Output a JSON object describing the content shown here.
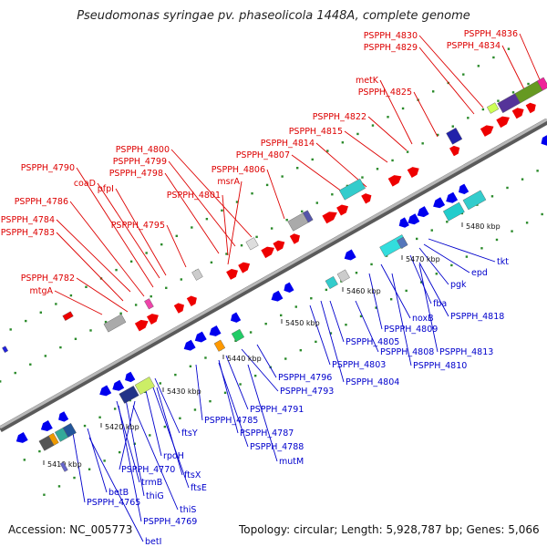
{
  "title": "Pseudomonas syringae pv. phaseolicola 1448A, complete genome",
  "footer": {
    "accession": "Accession: NC_005773",
    "summary": "Topology: circular; Length: 5,928,787 bp; Genes: 5,066"
  },
  "colors": {
    "forward_label": "#dd0000",
    "reverse_label": "#0000cc",
    "backbone": "#8a8a8a",
    "forward_gene": "#ee0000",
    "reverse_gene": "#0000ee",
    "tick_dot": "#2a8a2a"
  },
  "scale_labels": [
    "5410 kbp",
    "5420 kbp",
    "5430 kbp",
    "5440 kbp",
    "5450 kbp",
    "5460 kbp",
    "5470 kbp",
    "5480 kbp"
  ],
  "forward_labels": [
    "PSPPH_4836",
    "PSPPH_4834",
    "PSPPH_4830",
    "PSPPH_4829",
    "metK",
    "PSPPH_4825",
    "PSPPH_4822",
    "PSPPH_4815",
    "PSPPH_4814",
    "PSPPH_4807",
    "PSPPH_4806",
    "PSPPH_4800",
    "PSPPH_4799",
    "PSPPH_4798",
    "PSPPH_4801",
    "msrA",
    "PSPPH_4790",
    "coaD",
    "pfpI",
    "PSPPH_4786",
    "PSPPH_4795",
    "PSPPH_4784",
    "PSPPH_4783",
    "PSPPH_4782",
    "mtgA"
  ],
  "reverse_labels": [
    "tkt",
    "epd",
    "pgk",
    "fba",
    "PSPPH_4818",
    "noxB",
    "PSPPH_4809",
    "PSPPH_4813",
    "PSPPH_4805",
    "PSPPH_4808",
    "PSPPH_4810",
    "PSPPH_4803",
    "PSPPH_4804",
    "PSPPH_4796",
    "PSPPH_4793",
    "PSPPH_4791",
    "PSPPH_4785",
    "PSPPH_4787",
    "PSPPH_4788",
    "mutM",
    "ftsY",
    "rpoH",
    "ftsX",
    "ftsE",
    "PSPPH_4770",
    "trmB",
    "thiG",
    "thiS",
    "PSPPH_4769",
    "betB",
    "PSPPH_4765",
    "betI"
  ]
}
